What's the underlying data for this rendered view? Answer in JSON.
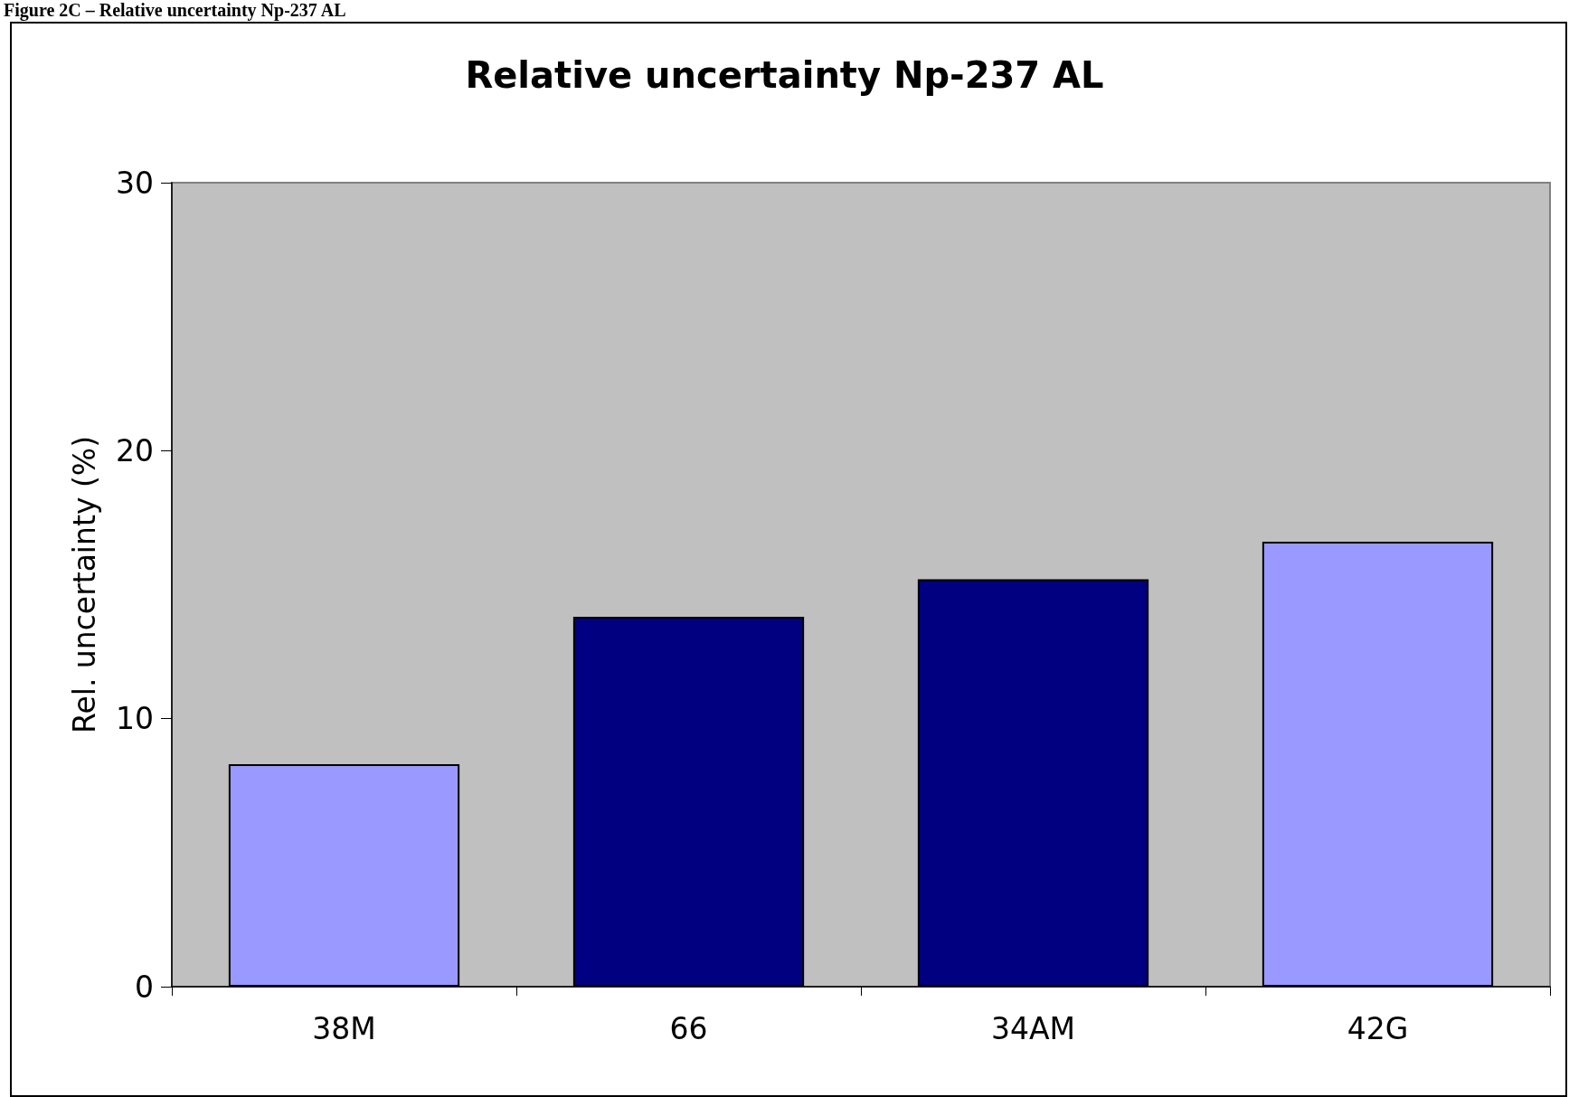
{
  "chart_data": {
    "type": "bar",
    "title": "Relative uncertainty Np-237 AL",
    "annotations": [
      "Figure 2C – Relative uncertainty Np-237 AL"
    ],
    "ylabel": "Rel. uncertainty (%)",
    "categories": [
      "38M",
      "66",
      "34AM",
      "42G"
    ],
    "values": [
      8.3,
      13.8,
      15.2,
      16.6
    ],
    "colors": [
      "#9999ff",
      "#000080",
      "#000080",
      "#9999ff"
    ],
    "ylim": [
      0,
      30
    ],
    "yticks": [
      0,
      10,
      20,
      30
    ],
    "grid": false
  }
}
